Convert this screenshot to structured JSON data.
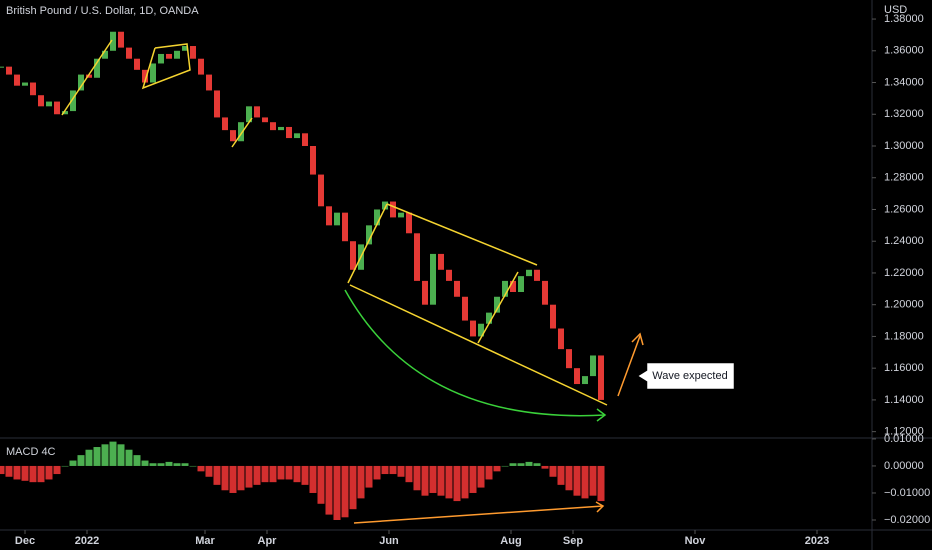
{
  "chart_data": [
    {
      "type": "candlestick",
      "title": "British Pound / U.S. Dollar, 1D, OANDA",
      "axis_label": "USD",
      "x": [
        -12,
        -8,
        -4,
        0,
        4,
        8,
        12,
        16,
        20,
        24,
        28,
        32,
        36,
        40,
        44,
        48,
        52,
        56,
        60,
        64,
        68,
        72,
        76,
        80,
        84,
        88,
        92,
        96,
        100,
        104,
        108,
        112,
        116,
        120,
        124,
        128,
        132,
        136,
        140,
        144,
        148,
        152,
        156,
        160,
        164,
        168,
        172,
        176,
        180,
        184,
        188,
        192,
        196,
        200,
        204,
        208,
        212,
        216,
        220,
        224,
        228,
        232,
        236,
        240,
        244,
        248,
        252,
        256,
        260,
        264,
        268,
        272,
        276,
        280,
        284,
        288
      ],
      "series": [
        {
          "name": "GBPUSD",
          "color": "#4caf50",
          "down_color": "#e53935",
          "values": [
            1.35,
            1.345,
            1.338,
            1.34,
            1.332,
            1.325,
            1.328,
            1.32,
            1.322,
            1.335,
            1.345,
            1.343,
            1.355,
            1.36,
            1.372,
            1.362,
            1.355,
            1.348,
            1.34,
            1.352,
            1.358,
            1.355,
            1.36,
            1.363,
            1.355,
            1.345,
            1.335,
            1.318,
            1.31,
            1.303,
            1.315,
            1.325,
            1.318,
            1.315,
            1.31,
            1.312,
            1.305,
            1.308,
            1.3,
            1.282,
            1.262,
            1.25,
            1.258,
            1.24,
            1.222,
            1.238,
            1.25,
            1.26,
            1.265,
            1.255,
            1.258,
            1.245,
            1.215,
            1.2,
            1.232,
            1.222,
            1.215,
            1.205,
            1.19,
            1.18,
            1.188,
            1.195,
            1.205,
            1.215,
            1.208,
            1.218,
            1.222,
            1.215,
            1.2,
            1.185,
            1.172,
            1.16,
            1.15,
            1.155,
            1.168,
            1.14
          ]
        }
      ],
      "xlim": [
        -12.5,
        422.5
      ],
      "xticks": [
        {
          "value": 0,
          "label": "Dec"
        },
        {
          "value": 31,
          "label": "2022"
        },
        {
          "value": 90,
          "label": "Mar"
        },
        {
          "value": 121,
          "label": "Apr"
        },
        {
          "value": 182,
          "label": "Jun"
        },
        {
          "value": 243,
          "label": "Aug"
        },
        {
          "value": 274,
          "label": "Sep"
        },
        {
          "value": 335,
          "label": "Nov"
        },
        {
          "value": 396,
          "label": "2023"
        }
      ],
      "ylim": [
        1.116,
        1.392
      ],
      "yticks": [
        {
          "value": 1.12,
          "label": "1.12000"
        },
        {
          "value": 1.14,
          "label": "1.14000"
        },
        {
          "value": 1.16,
          "label": "1.16000"
        },
        {
          "value": 1.18,
          "label": "1.18000"
        },
        {
          "value": 1.2,
          "label": "1.20000"
        },
        {
          "value": 1.22,
          "label": "1.22000"
        },
        {
          "value": 1.24,
          "label": "1.24000"
        },
        {
          "value": 1.26,
          "label": "1.26000"
        },
        {
          "value": 1.28,
          "label": "1.28000"
        },
        {
          "value": 1.3,
          "label": "1.30000"
        },
        {
          "value": 1.32,
          "label": "1.32000"
        },
        {
          "value": 1.34,
          "label": "1.34000"
        },
        {
          "value": 1.36,
          "label": "1.36000"
        },
        {
          "value": 1.38,
          "label": "1.38000"
        }
      ],
      "annotations": [
        "Wave expected"
      ]
    },
    {
      "type": "histogram-bars",
      "title": "MACD 4C",
      "series": [
        {
          "name": "MACD",
          "color": "#4caf50",
          "down_color": "#d32f2f",
          "values": [
            -0.003,
            -0.004,
            -0.005,
            -0.0055,
            -0.006,
            -0.006,
            -0.005,
            -0.003,
            0.0,
            0.002,
            0.004,
            0.006,
            0.007,
            0.008,
            0.009,
            0.008,
            0.006,
            0.004,
            0.002,
            0.001,
            0.001,
            0.0015,
            0.001,
            0.001,
            0.0,
            -0.002,
            -0.004,
            -0.007,
            -0.009,
            -0.01,
            -0.009,
            -0.008,
            -0.007,
            -0.006,
            -0.006,
            -0.005,
            -0.005,
            -0.006,
            -0.007,
            -0.01,
            -0.014,
            -0.018,
            -0.02,
            -0.019,
            -0.016,
            -0.012,
            -0.008,
            -0.005,
            -0.003,
            -0.003,
            -0.004,
            -0.006,
            -0.009,
            -0.011,
            -0.01,
            -0.011,
            -0.012,
            -0.013,
            -0.012,
            -0.01,
            -0.008,
            -0.005,
            -0.002,
            0.0,
            0.001,
            0.001,
            0.0015,
            0.001,
            -0.001,
            -0.004,
            -0.007,
            -0.009,
            -0.011,
            -0.012,
            -0.011,
            -0.013
          ]
        }
      ],
      "ylim": [
        -0.0237,
        0.0096
      ],
      "yticks": [
        {
          "value": 0.01,
          "label": "0.01000"
        },
        {
          "value": 0,
          "label": "0.00000"
        },
        {
          "value": -0.01,
          "label": "−0.01000"
        },
        {
          "value": -0.02,
          "label": "−0.02000"
        }
      ]
    }
  ]
}
